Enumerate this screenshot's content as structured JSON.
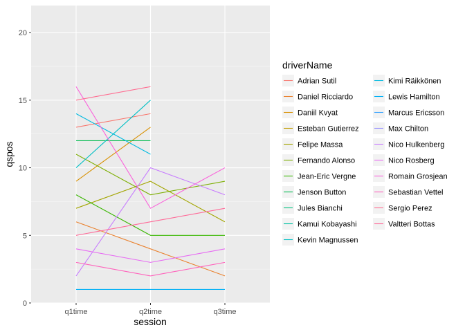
{
  "chart_data": {
    "type": "line",
    "xlabel": "session",
    "ylabel": "qspos",
    "categories": [
      "q1time",
      "q2time",
      "q3time"
    ],
    "ylim": [
      0,
      22
    ],
    "yticks": [
      0,
      5,
      10,
      15,
      20
    ],
    "grid": true,
    "legend_position": "right",
    "legend_title": "driverName",
    "series": [
      {
        "name": "Adrian Sutil",
        "color": "#F8766D",
        "values": [
          13,
          14,
          null
        ]
      },
      {
        "name": "Daniel Ricciardo",
        "color": "#EA8331",
        "values": [
          6,
          4,
          2
        ]
      },
      {
        "name": "Daniil Kvyat",
        "color": "#D89000",
        "values": [
          9,
          13,
          null
        ]
      },
      {
        "name": "Esteban Gutierrez",
        "color": "#C09B00",
        "values": [
          null,
          null,
          null
        ]
      },
      {
        "name": "Felipe Massa",
        "color": "#A3A500",
        "values": [
          7,
          9,
          6
        ]
      },
      {
        "name": "Fernando Alonso",
        "color": "#7CAE00",
        "values": [
          11,
          8,
          9
        ]
      },
      {
        "name": "Jean-Eric Vergne",
        "color": "#39B600",
        "values": [
          8,
          5,
          5
        ]
      },
      {
        "name": "Jenson Button",
        "color": "#00BB4E",
        "values": [
          12,
          12,
          null
        ]
      },
      {
        "name": "Jules Bianchi",
        "color": "#00BF7D",
        "values": [
          null,
          null,
          null
        ]
      },
      {
        "name": "Kamui Kobayashi",
        "color": "#00C1A3",
        "values": [
          null,
          null,
          null
        ]
      },
      {
        "name": "Kevin Magnussen",
        "color": "#00BFC4",
        "values": [
          10,
          15,
          null
        ]
      },
      {
        "name": "Kimi Räikkönen",
        "color": "#00BAE0",
        "values": [
          14,
          11,
          null
        ]
      },
      {
        "name": "Lewis Hamilton",
        "color": "#00B0F6",
        "values": [
          1,
          1,
          1
        ]
      },
      {
        "name": "Marcus Ericsson",
        "color": "#35A2FF",
        "values": [
          null,
          null,
          null
        ]
      },
      {
        "name": "Max Chilton",
        "color": "#9590FF",
        "values": [
          null,
          null,
          null
        ]
      },
      {
        "name": "Nico Hulkenberg",
        "color": "#C77CFF",
        "values": [
          2,
          10,
          8
        ]
      },
      {
        "name": "Nico Rosberg",
        "color": "#E76BF3",
        "values": [
          4,
          3,
          4
        ]
      },
      {
        "name": "Romain Grosjean",
        "color": "#FA62DB",
        "values": [
          16,
          7,
          10
        ]
      },
      {
        "name": "Sebastian Vettel",
        "color": "#FF62BC",
        "values": [
          3,
          2,
          3
        ]
      },
      {
        "name": "Sergio Perez",
        "color": "#FF6C91",
        "values": [
          15,
          16,
          null
        ]
      },
      {
        "name": "Valtteri  Bottas",
        "color": "#FF6A98",
        "values": [
          5,
          6,
          7
        ]
      }
    ]
  }
}
